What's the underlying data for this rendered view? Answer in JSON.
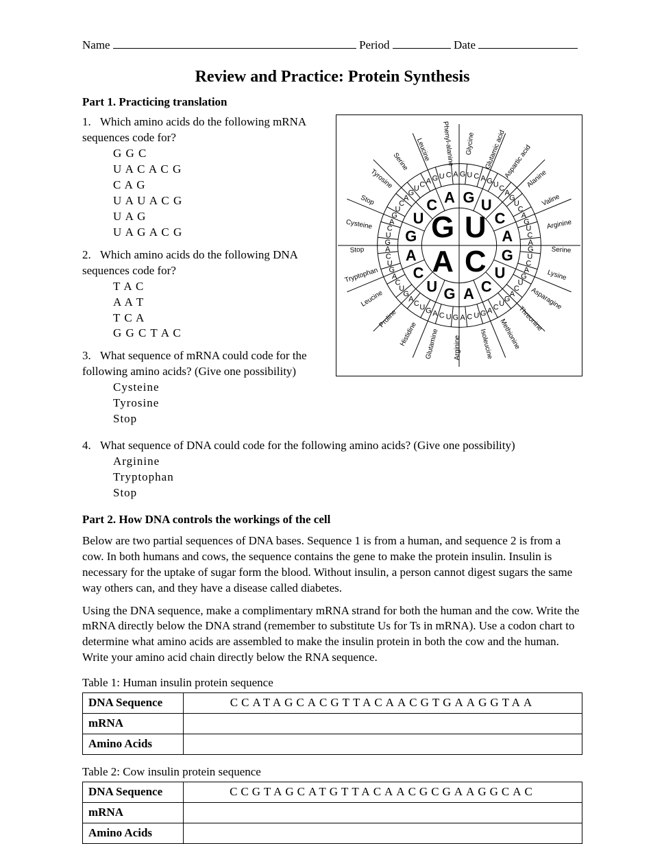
{
  "header": {
    "name_label": "Name",
    "period_label": "Period",
    "date_label": "Date"
  },
  "title": "Review and Practice: Protein Synthesis",
  "part1": {
    "heading": "Part 1. Practicing translation",
    "q1": {
      "num": "1.",
      "text": "Which amino acids do the following mRNA sequences code for?",
      "seqs": [
        "G G C",
        "U A C A C G",
        "C A G",
        "U A U A C G",
        "U A G",
        "U A G A C G"
      ]
    },
    "q2": {
      "num": "2.",
      "text": "Which amino acids do the following DNA sequences code for?",
      "seqs": [
        "T A C",
        "A A T",
        "T C A",
        "G G C T A C"
      ]
    },
    "q3": {
      "num": "3.",
      "text": "What sequence of mRNA could code for the following amino acids? (Give one possibility)",
      "seqs": [
        "Cysteine",
        "Tyrosine",
        "Stop"
      ]
    },
    "q4": {
      "num": "4.",
      "text": "What sequence of DNA could code for the following amino acids? (Give one possibility)",
      "seqs": [
        "Arginine",
        "Tryptophan",
        "Stop"
      ]
    }
  },
  "part2": {
    "heading": "Part 2. How DNA controls the workings of the cell",
    "para1": "Below are two partial sequences of DNA bases.  Sequence 1 is from a human, and sequence 2 is from a cow.  In both humans and cows, the sequence contains the gene to make the protein insulin.  Insulin is necessary for the uptake of sugar form the blood.  Without insulin, a person cannot digest sugars the same way others can, and they have a disease called diabetes.",
    "para2": "Using the DNA sequence, make a complimentary mRNA strand for both the human and the cow.  Write the mRNA directly below the DNA strand (remember to substitute Us for Ts in mRNA).  Use a codon chart to determine what amino acids are assembled to make the insulin protein in both the cow and the human.  Write your amino acid chain directly below the RNA sequence.",
    "table1": {
      "caption": "Table 1: Human insulin protein sequence",
      "rows": {
        "dna_label": "DNA Sequence",
        "dna_value": "CCATAGCACGTTACAACGTGAAGGTAA",
        "mrna_label": "mRNA",
        "aa_label": "Amino Acids"
      }
    },
    "table2": {
      "caption": "Table 2: Cow insulin protein sequence",
      "rows": {
        "dna_label": "DNA Sequence",
        "dna_value": "CCGTAGCATGTTACAACGCGAAGGCAC",
        "mrna_label": "mRNA",
        "aa_label": "Amino Acids"
      }
    }
  },
  "codon_wheel": {
    "type": "circular-codon-chart",
    "center_bases": [
      "G",
      "U",
      "A",
      "C"
    ],
    "outer_amino_acids": [
      "Glycine",
      "Glutamic acid",
      "Aspartic acid",
      "Alanine",
      "Valine",
      "Arginine",
      "Serine",
      "Lysine",
      "Asparagine",
      "Threonine",
      "Methionine",
      "Isoleucine",
      "Arginine",
      "Glutamine",
      "Histidine",
      "Proline",
      "Leucine",
      "Tryptophan",
      "Stop",
      "Cysteine",
      "Stop",
      "Tyrosine",
      "Serine",
      "Leucine",
      "Phenyl-alanine"
    ],
    "colors": {
      "stroke": "#000000",
      "fill": "#ffffff",
      "text": "#000000"
    },
    "font_family": "Arial",
    "center_fontsize": 44,
    "ring2_fontsize": 22,
    "ring3_fontsize": 11,
    "label_fontsize": 10
  }
}
